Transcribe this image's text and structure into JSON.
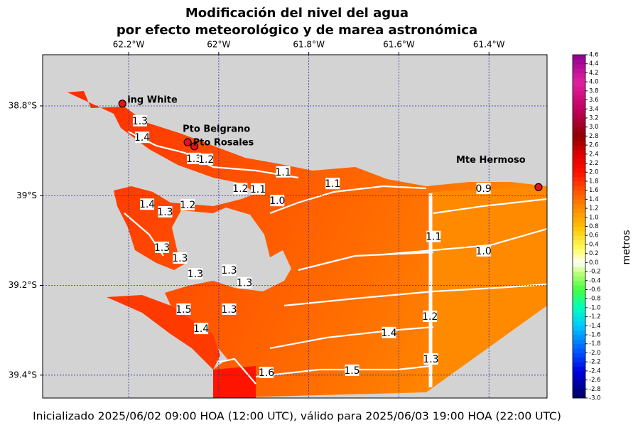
{
  "map": {
    "title": [
      "Modificación del nivel del agua",
      "por efecto meteorológico y de marea astronómica"
    ],
    "footer": "Inicializado 2025/06/02 09:00 HOA (12:00 UTC), válido para 2025/06/03 19:00 HOA (22:00 UTC)",
    "xlim": [
      -62.391,
      -61.271
    ],
    "ylim": [
      -39.451,
      -38.686
    ],
    "xticks": [
      {
        "value": -62.2,
        "label": "62.2°W"
      },
      {
        "value": -62.0,
        "label": "62°W"
      },
      {
        "value": -61.8,
        "label": "61.8°W"
      },
      {
        "value": -61.6,
        "label": "61.6°W"
      },
      {
        "value": -61.4,
        "label": "61.4°W"
      }
    ],
    "yticks": [
      {
        "value": -38.8,
        "label": "38.8°S"
      },
      {
        "value": -39.0,
        "label": "39°S"
      },
      {
        "value": -39.2,
        "label": "39.2°S"
      },
      {
        "value": -39.4,
        "label": "39.4°S"
      }
    ],
    "grid": true,
    "grid_color": "#2b2bb0",
    "land_color": "#d3d3d3",
    "marker_color": "#e8101a",
    "locations": [
      {
        "name": "ing White",
        "lon": -62.214,
        "lat": -38.795
      },
      {
        "name": "Pto Belgrano",
        "lon": -62.069,
        "lat": -38.881
      },
      {
        "name": "Pto Rosales",
        "lon": -62.054,
        "lat": -38.89
      },
      {
        "name": "Mte Hermoso",
        "lon": -61.29,
        "lat": -38.981
      }
    ],
    "contour_labels": [
      {
        "label": "1.3",
        "lon": -62.175,
        "lat": -38.833
      },
      {
        "label": "1.4",
        "lon": -62.17,
        "lat": -38.87
      },
      {
        "label": "1.3",
        "lon": -62.055,
        "lat": -38.917
      },
      {
        "label": "1.2",
        "lon": -62.028,
        "lat": -38.919
      },
      {
        "label": "1.1",
        "lon": -61.857,
        "lat": -38.947
      },
      {
        "label": "1.1",
        "lon": -61.747,
        "lat": -38.973
      },
      {
        "label": "0.9",
        "lon": -61.412,
        "lat": -38.984
      },
      {
        "label": "1.2",
        "lon": -61.952,
        "lat": -38.984
      },
      {
        "label": "1.1",
        "lon": -61.913,
        "lat": -38.985
      },
      {
        "label": "1.0",
        "lon": -61.87,
        "lat": -39.011
      },
      {
        "label": "1.4",
        "lon": -62.159,
        "lat": -39.019
      },
      {
        "label": "1.3",
        "lon": -62.119,
        "lat": -39.036
      },
      {
        "label": "1.2",
        "lon": -62.069,
        "lat": -39.02
      },
      {
        "label": "1.1",
        "lon": -61.523,
        "lat": -39.091
      },
      {
        "label": "1.0",
        "lon": -61.412,
        "lat": -39.123
      },
      {
        "label": "1.3",
        "lon": -62.126,
        "lat": -39.115
      },
      {
        "label": "1.3",
        "lon": -62.086,
        "lat": -39.139
      },
      {
        "label": "1.3",
        "lon": -62.052,
        "lat": -39.174
      },
      {
        "label": "1.3",
        "lon": -61.977,
        "lat": -39.166
      },
      {
        "label": "1.3",
        "lon": -61.943,
        "lat": -39.194
      },
      {
        "label": "1.5",
        "lon": -62.078,
        "lat": -39.253
      },
      {
        "label": "1.3",
        "lon": -61.977,
        "lat": -39.253
      },
      {
        "label": "1.4",
        "lon": -62.039,
        "lat": -39.296
      },
      {
        "label": "1.4",
        "lon": -61.622,
        "lat": -39.305
      },
      {
        "label": "1.2",
        "lon": -61.531,
        "lat": -39.269
      },
      {
        "label": "1.5",
        "lon": -61.704,
        "lat": -39.389
      },
      {
        "label": "1.6",
        "lon": -61.894,
        "lat": -39.394
      },
      {
        "label": "1.3",
        "lon": -61.529,
        "lat": -39.364
      }
    ],
    "colorbar": {
      "label": "metros",
      "lim": [
        -3.0,
        4.6
      ],
      "colormap": [
        [
          -3.0,
          "#000060"
        ],
        [
          -2.4,
          "#0000e0"
        ],
        [
          -2.0,
          "#0050ff"
        ],
        [
          -1.4,
          "#00c8ff"
        ],
        [
          -1.0,
          "#00ffc0"
        ],
        [
          -0.6,
          "#40ff40"
        ],
        [
          -0.2,
          "#c8ff80"
        ],
        [
          0.0,
          "#ffffff"
        ],
        [
          0.3,
          "#ffff60"
        ],
        [
          0.8,
          "#ffc000"
        ],
        [
          1.4,
          "#ff7000"
        ],
        [
          2.0,
          "#ff1000"
        ],
        [
          2.4,
          "#e00000"
        ],
        [
          2.8,
          "#900000"
        ],
        [
          3.4,
          "#c00060"
        ],
        [
          4.0,
          "#e020a0"
        ],
        [
          4.6,
          "#900090"
        ]
      ],
      "ticks": [
        {
          "value": 4.6,
          "label": "4.6"
        },
        {
          "value": 4.4,
          "label": "4.4"
        },
        {
          "value": 4.2,
          "label": "4.2"
        },
        {
          "value": 4.0,
          "label": "4.0"
        },
        {
          "value": 3.8,
          "label": "3.8"
        },
        {
          "value": 3.6,
          "label": "3.6"
        },
        {
          "value": 3.4,
          "label": "3.4"
        },
        {
          "value": 3.2,
          "label": "3.2"
        },
        {
          "value": 3.0,
          "label": "3.0"
        },
        {
          "value": 2.8,
          "label": "2.8"
        },
        {
          "value": 2.6,
          "label": "2.6"
        },
        {
          "value": 2.4,
          "label": "2.4"
        },
        {
          "value": 2.2,
          "label": "2.2"
        },
        {
          "value": 2.0,
          "label": "2.0"
        },
        {
          "value": 1.8,
          "label": "1.8"
        },
        {
          "value": 1.6,
          "label": "1.6"
        },
        {
          "value": 1.4,
          "label": "1.4"
        },
        {
          "value": 1.2,
          "label": "1.2"
        },
        {
          "value": 1.0,
          "label": "1.0"
        },
        {
          "value": 0.8,
          "label": "0.8"
        },
        {
          "value": 0.6,
          "label": "0.6"
        },
        {
          "value": 0.4,
          "label": "0.4"
        },
        {
          "value": 0.2,
          "label": "0.2"
        },
        {
          "value": 0.0,
          "label": "0.0"
        },
        {
          "value": -0.2,
          "label": "-0.2"
        },
        {
          "value": -0.4,
          "label": "-0.4"
        },
        {
          "value": -0.6,
          "label": "-0.6"
        },
        {
          "value": -0.8,
          "label": "-0.8"
        },
        {
          "value": -1.0,
          "label": "-1.0"
        },
        {
          "value": -1.2,
          "label": "-1.2"
        },
        {
          "value": -1.4,
          "label": "-1.4"
        },
        {
          "value": -1.6,
          "label": "-1.6"
        },
        {
          "value": -1.8,
          "label": "-1.8"
        },
        {
          "value": -2.0,
          "label": "-2.0"
        },
        {
          "value": -2.2,
          "label": "-2.2"
        },
        {
          "value": -2.4,
          "label": "-2.4"
        },
        {
          "value": -2.6,
          "label": "-2.6"
        },
        {
          "value": -2.8,
          "label": "-2.8"
        },
        {
          "value": -3.0,
          "label": "-3.0"
        }
      ]
    }
  }
}
